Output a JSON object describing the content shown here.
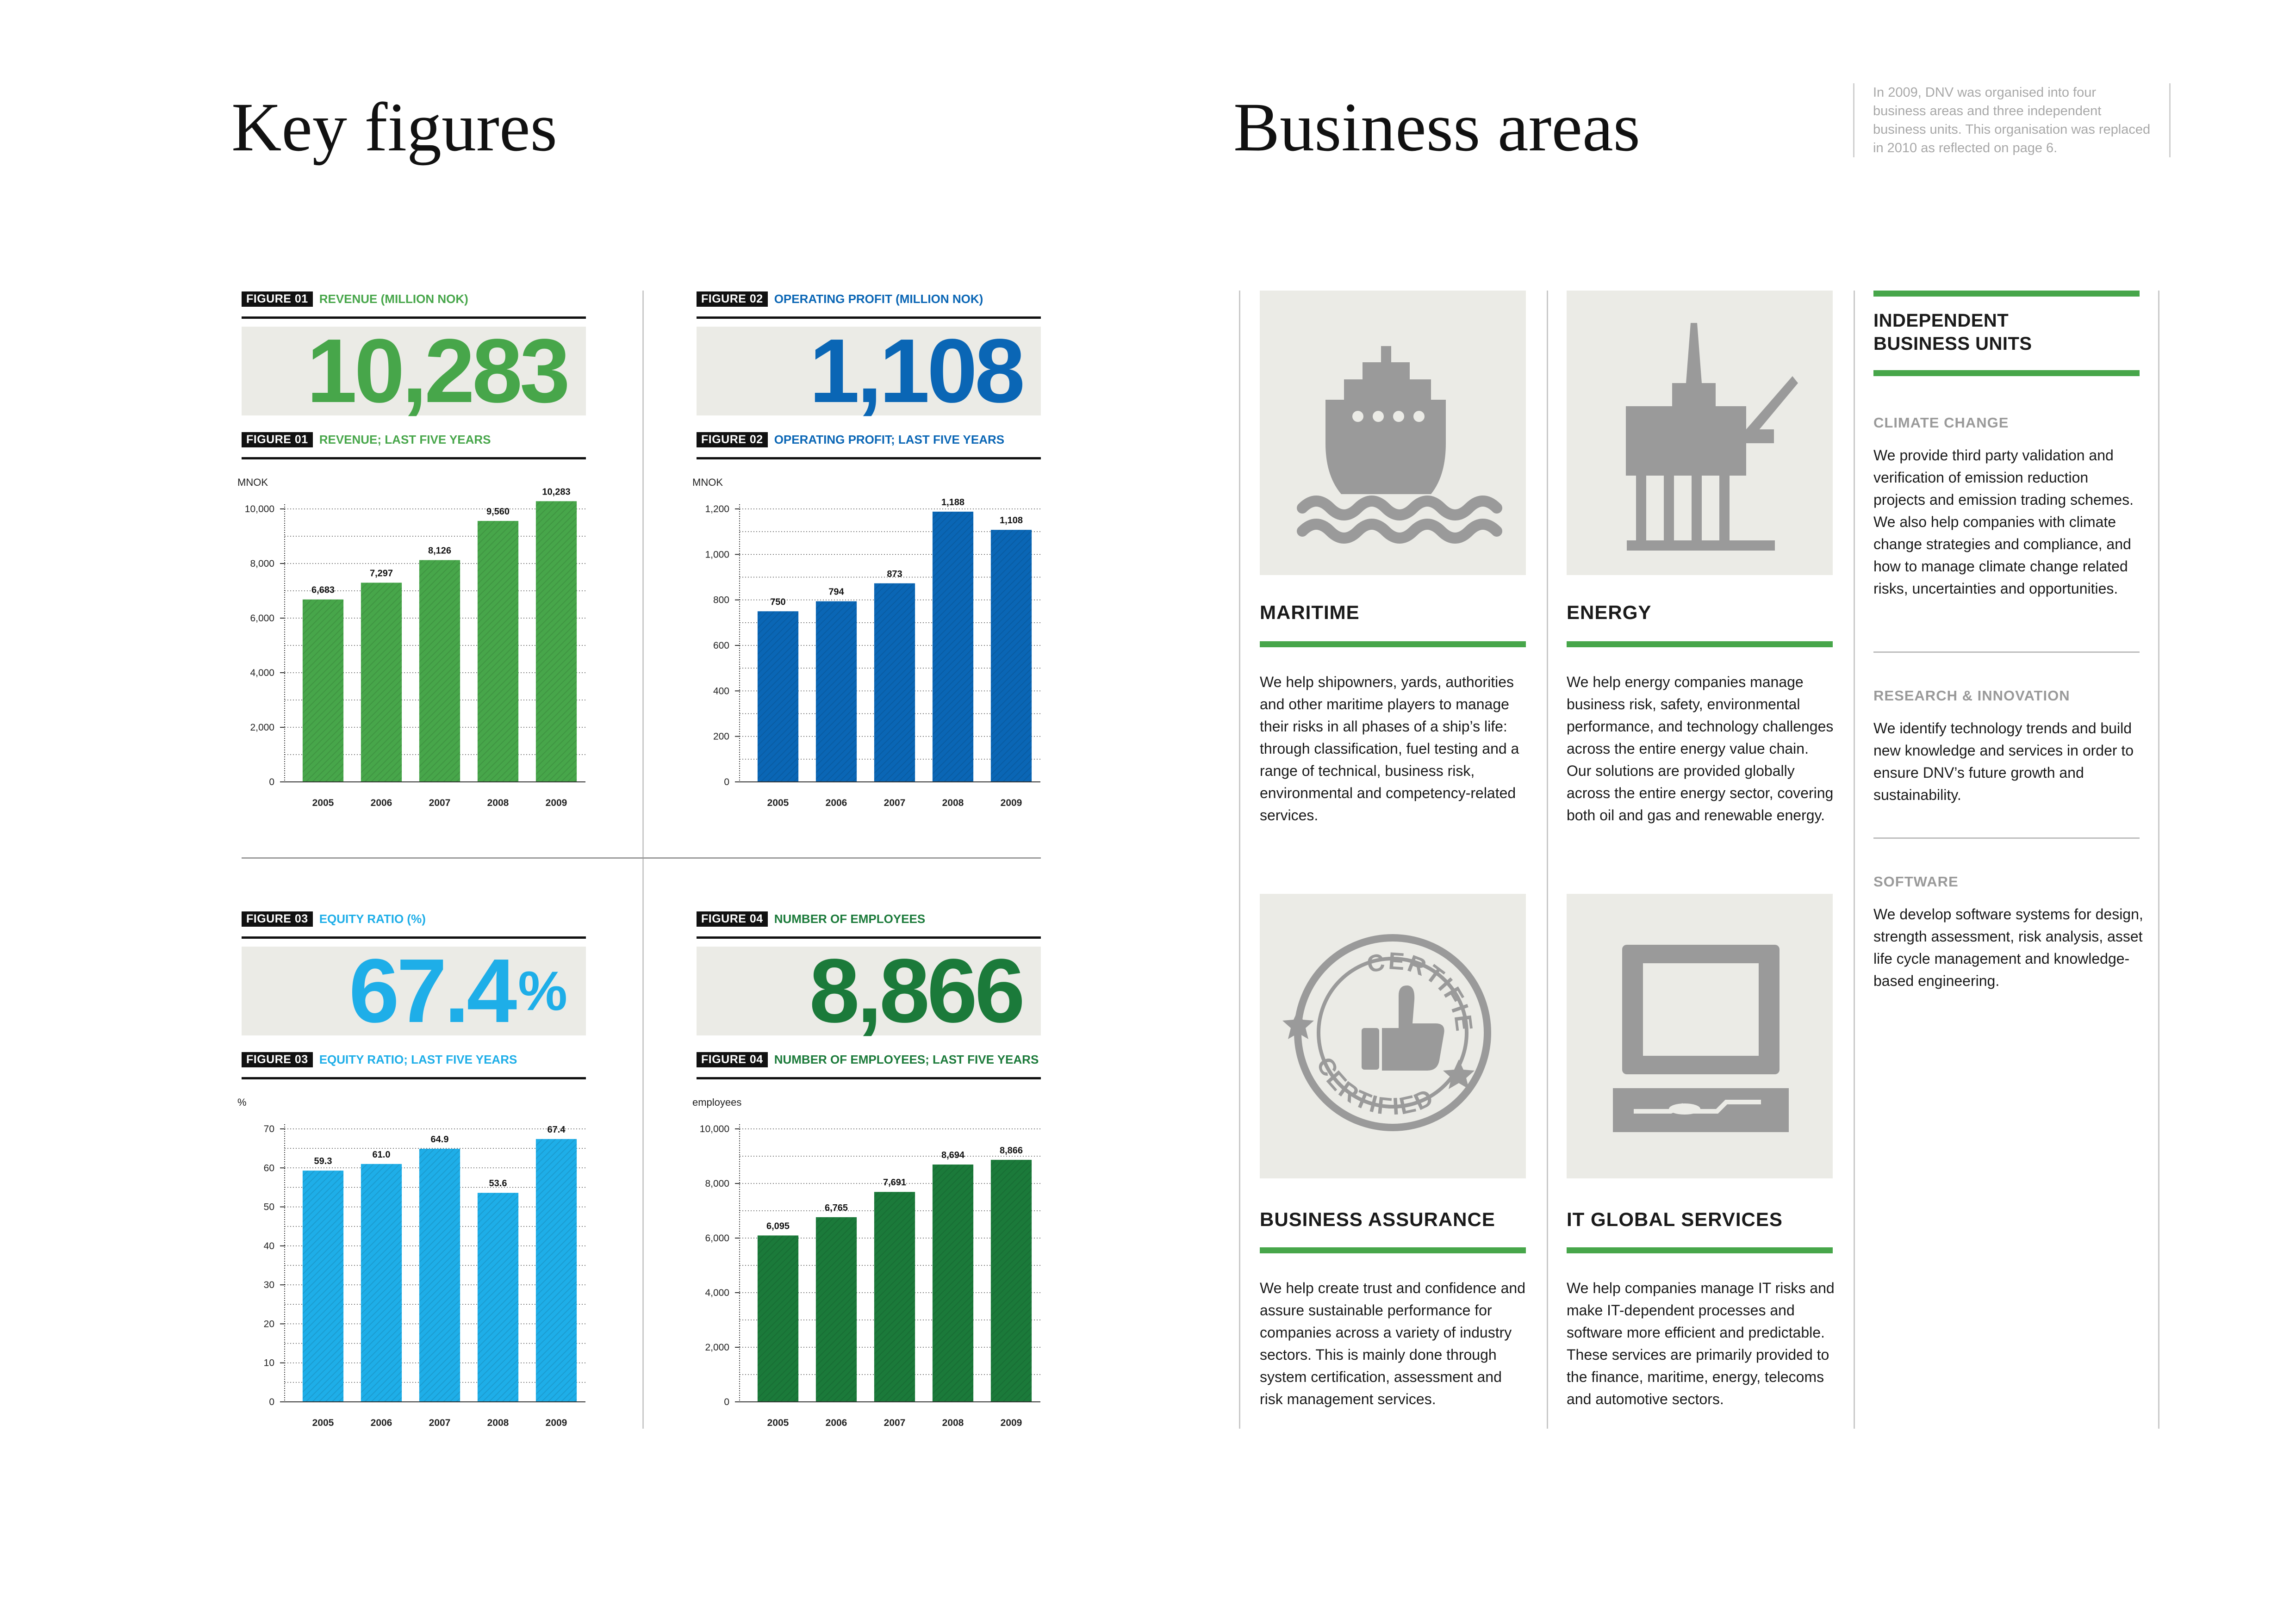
{
  "left": {
    "title": "Key figures"
  },
  "right": {
    "title": "Business areas",
    "intro": "In 2009, DNV was organised into four business areas and three independent business units. This organisation was replaced in 2010 as reflected on page 6."
  },
  "colors": {
    "revenue": "#47a64a",
    "profit": "#0a66b5",
    "equity": "#1eaee8",
    "employees": "#1b7a3a",
    "accent_green": "#47a64a",
    "icon_grey": "#9a9a9a"
  },
  "figures": [
    {
      "tag": "FIGURE 01",
      "headline": "REVENUE (MILLION NOK)",
      "big_value": "10,283",
      "big_suffix": "",
      "chart_tag": "FIGURE 01",
      "chart_caption": "REVENUE; LAST FIVE YEARS",
      "color": "#47a64a"
    },
    {
      "tag": "FIGURE 02",
      "headline": "OPERATING PROFIT (MILLION NOK)",
      "big_value": "1,108",
      "big_suffix": "",
      "chart_tag": "FIGURE 02",
      "chart_caption": "OPERATING PROFIT; LAST FIVE YEARS",
      "color": "#0a66b5"
    },
    {
      "tag": "FIGURE 03",
      "headline": "EQUITY RATIO (%)",
      "big_value": "67.4",
      "big_suffix": "%",
      "chart_tag": "FIGURE 03",
      "chart_caption": "EQUITY RATIO; LAST FIVE YEARS",
      "color": "#1eaee8"
    },
    {
      "tag": "FIGURE 04",
      "headline": "NUMBER OF EMPLOYEES",
      "big_value": "8,866",
      "big_suffix": "",
      "chart_tag": "FIGURE 04",
      "chart_caption": "NUMBER OF EMPLOYEES; LAST FIVE YEARS",
      "color": "#1b7a3a"
    }
  ],
  "chart_data": [
    {
      "type": "bar",
      "unit_label": "MNOK",
      "categories": [
        "2005",
        "2006",
        "2007",
        "2008",
        "2009"
      ],
      "values": [
        6683,
        7297,
        8126,
        9560,
        10283
      ],
      "value_labels": [
        "6,683",
        "7,297",
        "8,126",
        "9,560",
        "10,283"
      ],
      "ylim": [
        0,
        10000
      ],
      "yticks": [
        0,
        2000,
        4000,
        6000,
        8000,
        10000
      ],
      "ytick_labels": [
        "0",
        "2,000",
        "4,000",
        "6,000",
        "8,000",
        "10,000"
      ],
      "grid": true,
      "color": "#47a64a"
    },
    {
      "type": "bar",
      "unit_label": "MNOK",
      "categories": [
        "2005",
        "2006",
        "2007",
        "2008",
        "2009"
      ],
      "values": [
        750,
        794,
        873,
        1188,
        1108
      ],
      "value_labels": [
        "750",
        "794",
        "873",
        "1,188",
        "1,108"
      ],
      "ylim": [
        0,
        1200
      ],
      "yticks": [
        0,
        200,
        400,
        600,
        800,
        1000,
        1200
      ],
      "ytick_labels": [
        "0",
        "200",
        "400",
        "600",
        "800",
        "1,000",
        "1,200"
      ],
      "grid": true,
      "color": "#0a66b5"
    },
    {
      "type": "bar",
      "unit_label": "%",
      "categories": [
        "2005",
        "2006",
        "2007",
        "2008",
        "2009"
      ],
      "values": [
        59.3,
        61.0,
        64.9,
        53.6,
        67.4
      ],
      "value_labels": [
        "59.3",
        "61.0",
        "64.9",
        "53.6",
        "67.4"
      ],
      "ylim": [
        0,
        70
      ],
      "yticks": [
        0,
        10,
        20,
        30,
        40,
        50,
        60,
        70
      ],
      "ytick_labels": [
        "0",
        "10",
        "20",
        "30",
        "40",
        "50",
        "60",
        "70"
      ],
      "grid": true,
      "color": "#1eaee8"
    },
    {
      "type": "bar",
      "unit_label": "employees",
      "categories": [
        "2005",
        "2006",
        "2007",
        "2008",
        "2009"
      ],
      "values": [
        6095,
        6765,
        7691,
        8694,
        8866
      ],
      "value_labels": [
        "6,095",
        "6,765",
        "7,691",
        "8,694",
        "8,866"
      ],
      "ylim": [
        0,
        10000
      ],
      "yticks": [
        0,
        2000,
        4000,
        6000,
        8000,
        10000
      ],
      "ytick_labels": [
        "0",
        "2,000",
        "4,000",
        "6,000",
        "8,000",
        "10,000"
      ],
      "grid": true,
      "color": "#1b7a3a"
    }
  ],
  "areas": [
    {
      "icon": "ship-icon",
      "title": "MARITIME",
      "text": "We help shipowners, yards, authorities and other maritime players to manage their risks in all phases of a ship’s life: through classification, fuel testing and a range of technical, business risk, environmental and competency-related services."
    },
    {
      "icon": "oil-platform-icon",
      "title": "ENERGY",
      "text": "We help energy companies manage business risk, safety, environmental performance, and technology challenges across the entire energy value chain. Our solutions are provided globally across the entire energy sector, covering both oil and gas and renewable energy."
    },
    {
      "icon": "certified-stamp-icon",
      "title": "BUSINESS ASSURANCE",
      "text": "We help create trust and confidence and assure sustainable performance for companies across a variety of industry sectors. This is mainly done through system certification, assessment and risk management services.",
      "stamp_text": "CERTIFIED"
    },
    {
      "icon": "computer-icon",
      "title": "IT GLOBAL SERVICES",
      "text": "We help companies manage IT risks and make IT-dependent processes and software more efficient and predictable. These services are primarily provided to the finance, maritime, energy, telecoms and automotive sectors."
    }
  ],
  "ibu": {
    "title_line1": "INDEPENDENT",
    "title_line2": "BUSINESS UNITS",
    "units": [
      {
        "name": "CLIMATE CHANGE",
        "text": "We provide third party validation and verification of emission reduction projects and emission trading schemes. We also help companies with climate change strategies and compliance, and how to manage climate change related risks, uncertainties and opportunities."
      },
      {
        "name": "RESEARCH & INNOVATION",
        "text": "We identify technology trends and build new knowledge and services in order to ensure DNV’s future growth and sustainability."
      },
      {
        "name": "SOFTWARE",
        "text": "We develop software systems for design, strength assessment, risk analysis, asset life cycle management and knowledge-based engineering."
      }
    ]
  }
}
